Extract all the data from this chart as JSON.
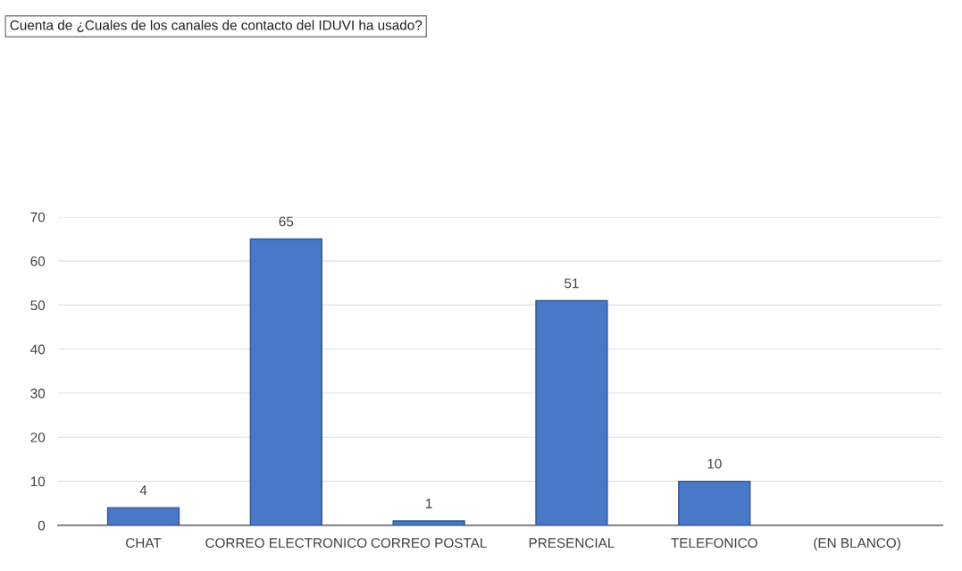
{
  "chart_data": {
    "type": "bar",
    "title": "Cuenta de ¿Cuales de los canales de contacto del IDUVI ha usado?",
    "categories": [
      "CHAT",
      "CORREO ELECTRONICO",
      "CORREO POSTAL",
      "PRESENCIAL",
      "TELEFONICO",
      "(EN BLANCO)"
    ],
    "values": [
      4,
      65,
      1,
      51,
      10,
      null
    ],
    "color": "#4a78c8",
    "ylim": [
      0,
      70
    ],
    "yticks": [
      0,
      10,
      20,
      30,
      40,
      50,
      60,
      70
    ],
    "grid": "y",
    "data_labels": true,
    "legend": false
  }
}
